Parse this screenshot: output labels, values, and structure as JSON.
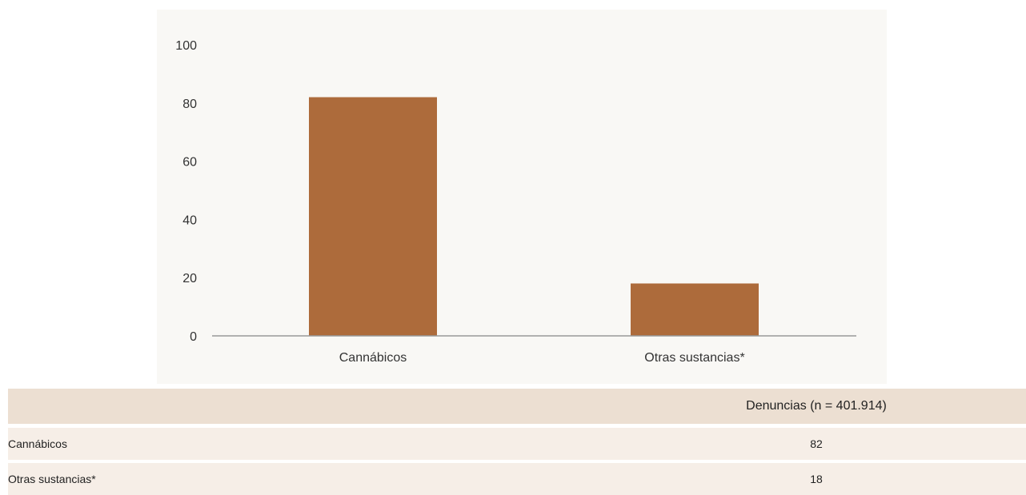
{
  "chart_data": {
    "type": "bar",
    "categories": [
      "Cannábicos",
      "Otras sustancias*"
    ],
    "values": [
      82,
      18
    ],
    "title": "",
    "xlabel": "",
    "ylabel": "",
    "ylim": [
      0,
      100
    ],
    "yticks": [
      0,
      20,
      40,
      60,
      80,
      100
    ],
    "grid": false,
    "colors": {
      "bar": "#ad6b3b",
      "panel_bg": "#f9f8f5",
      "axis": "#999999"
    }
  },
  "table": {
    "header": {
      "label": "",
      "value": "Denuncias (n = 401.914)"
    },
    "rows": [
      {
        "label": "Cannábicos",
        "value": "82"
      },
      {
        "label": "Otras sustancias*",
        "value": "18"
      }
    ]
  }
}
